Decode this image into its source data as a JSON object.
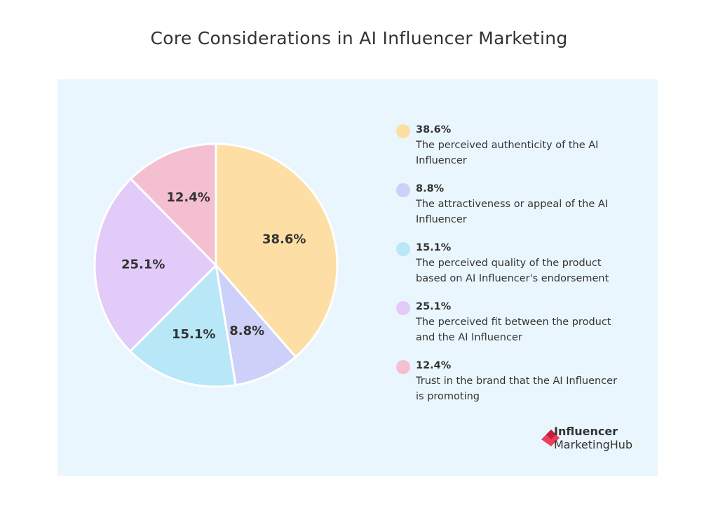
{
  "chart_data": {
    "type": "pie",
    "title": "Core Considerations in AI Influencer Marketing",
    "categories": [
      "The perceived authenticity of the AI Influencer",
      "The attractiveness or appeal of the AI Influencer",
      "The perceived quality of the product based on AI Influencer's endorsement",
      "The perceived fit between the product and the AI Influencer",
      "Trust in the brand that the AI Influencer is promoting"
    ],
    "values": [
      38.6,
      8.8,
      15.1,
      25.1,
      12.4
    ],
    "value_labels": [
      "38.6%",
      "8.8%",
      "15.1%",
      "25.1%",
      "12.4%"
    ],
    "colors": [
      "#fddfa6",
      "#cdd0f8",
      "#b8e8f8",
      "#e2cbf8",
      "#f5bfd2"
    ]
  },
  "brand": {
    "line1": "Influencer",
    "line2": "MarketingHub"
  }
}
